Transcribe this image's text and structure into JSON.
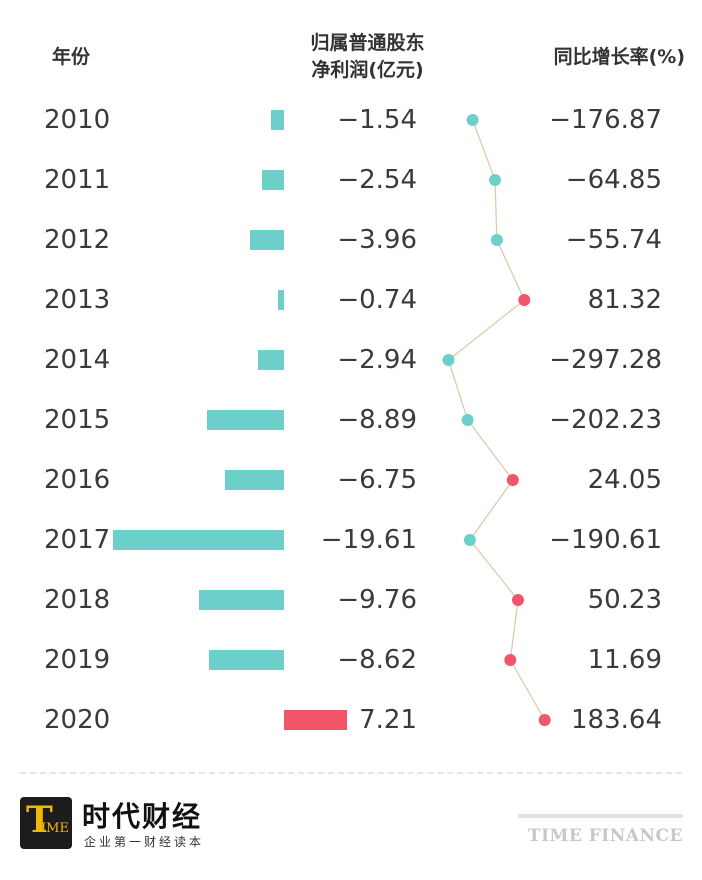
{
  "header": {
    "year_label": "年份",
    "profit_label_line1": "归属普通股东",
    "profit_label_line2": "净利润(亿元)",
    "growth_label": "同比增长率(%)"
  },
  "chart_data": {
    "type": "table",
    "categories": [
      "2010",
      "2011",
      "2012",
      "2013",
      "2014",
      "2015",
      "2016",
      "2017",
      "2018",
      "2019",
      "2020"
    ],
    "series": [
      {
        "name": "归属普通股东净利润(亿元)",
        "chart": "bar",
        "values": [
          -1.54,
          -2.54,
          -3.96,
          -0.74,
          -2.94,
          -8.89,
          -6.75,
          -19.61,
          -9.76,
          -8.62,
          7.21
        ],
        "labels": [
          "−1.54",
          "−2.54",
          "−3.96",
          "−0.74",
          "−2.94",
          "−8.89",
          "−6.75",
          "−19.61",
          "−9.76",
          "−8.62",
          "7.21"
        ]
      },
      {
        "name": "同比增长率(%)",
        "chart": "line",
        "values": [
          -176.87,
          -64.85,
          -55.74,
          81.32,
          -297.28,
          -202.23,
          24.05,
          -190.61,
          50.23,
          11.69,
          183.64
        ],
        "labels": [
          "−176.87",
          "−64.85",
          "−55.74",
          "81.32",
          "−297.28",
          "−202.23",
          "24.05",
          "−190.61",
          "50.23",
          "11.69",
          "183.64"
        ]
      }
    ],
    "colors": {
      "negative": "#6ccfc9",
      "positive": "#f2556a",
      "line": "#d9c9a6"
    }
  },
  "footer": {
    "logo_letter": "T",
    "logo_small": "IME",
    "brand_cn": "时代财经",
    "brand_sub": "企业第一财经读本",
    "brand_en": "TIME FINANCE"
  }
}
